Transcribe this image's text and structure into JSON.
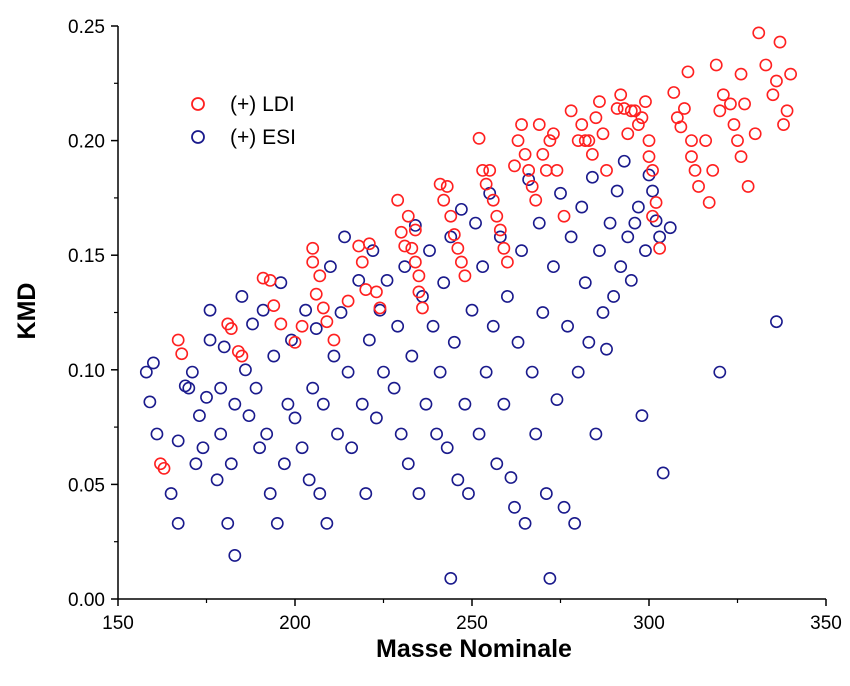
{
  "chart_data": {
    "type": "scatter",
    "xlabel": "Masse Nominale",
    "ylabel": "KMD",
    "xlim": [
      150,
      350
    ],
    "ylim": [
      0.0,
      0.25
    ],
    "x_ticks": [
      "150",
      "200",
      "250",
      "300",
      "350"
    ],
    "y_ticks": [
      "0.00",
      "0.05",
      "0.10",
      "0.15",
      "0.20",
      "0.25"
    ],
    "grid": false,
    "legend_position": "top-left",
    "series": [
      {
        "name": "(+) LDI",
        "color": "#ff2020",
        "marker": "open-circle",
        "points": [
          [
            162,
            0.059
          ],
          [
            163,
            0.057
          ],
          [
            167,
            0.113
          ],
          [
            168,
            0.107
          ],
          [
            181,
            0.12
          ],
          [
            182,
            0.118
          ],
          [
            184,
            0.108
          ],
          [
            185,
            0.106
          ],
          [
            191,
            0.14
          ],
          [
            193,
            0.139
          ],
          [
            194,
            0.128
          ],
          [
            196,
            0.12
          ],
          [
            200,
            0.112
          ],
          [
            202,
            0.119
          ],
          [
            205,
            0.153
          ],
          [
            205,
            0.147
          ],
          [
            206,
            0.133
          ],
          [
            207,
            0.141
          ],
          [
            208,
            0.127
          ],
          [
            209,
            0.121
          ],
          [
            211,
            0.113
          ],
          [
            215,
            0.13
          ],
          [
            218,
            0.154
          ],
          [
            219,
            0.147
          ],
          [
            220,
            0.135
          ],
          [
            221,
            0.155
          ],
          [
            223,
            0.134
          ],
          [
            224,
            0.127
          ],
          [
            229,
            0.174
          ],
          [
            230,
            0.16
          ],
          [
            231,
            0.154
          ],
          [
            232,
            0.167
          ],
          [
            233,
            0.153
          ],
          [
            234,
            0.161
          ],
          [
            234,
            0.147
          ],
          [
            235,
            0.141
          ],
          [
            235,
            0.134
          ],
          [
            236,
            0.127
          ],
          [
            241,
            0.181
          ],
          [
            242,
            0.174
          ],
          [
            243,
            0.18
          ],
          [
            244,
            0.167
          ],
          [
            245,
            0.159
          ],
          [
            246,
            0.153
          ],
          [
            247,
            0.147
          ],
          [
            248,
            0.141
          ],
          [
            252,
            0.201
          ],
          [
            253,
            0.187
          ],
          [
            254,
            0.181
          ],
          [
            255,
            0.187
          ],
          [
            256,
            0.174
          ],
          [
            257,
            0.167
          ],
          [
            258,
            0.161
          ],
          [
            259,
            0.153
          ],
          [
            260,
            0.147
          ],
          [
            262,
            0.189
          ],
          [
            263,
            0.2
          ],
          [
            264,
            0.207
          ],
          [
            265,
            0.194
          ],
          [
            266,
            0.187
          ],
          [
            267,
            0.18
          ],
          [
            268,
            0.174
          ],
          [
            269,
            0.207
          ],
          [
            270,
            0.194
          ],
          [
            271,
            0.187
          ],
          [
            272,
            0.2
          ],
          [
            273,
            0.203
          ],
          [
            274,
            0.187
          ],
          [
            276,
            0.167
          ],
          [
            278,
            0.213
          ],
          [
            280,
            0.2
          ],
          [
            281,
            0.207
          ],
          [
            282,
            0.2
          ],
          [
            283,
            0.2
          ],
          [
            284,
            0.194
          ],
          [
            285,
            0.21
          ],
          [
            286,
            0.217
          ],
          [
            287,
            0.203
          ],
          [
            288,
            0.187
          ],
          [
            291,
            0.214
          ],
          [
            292,
            0.22
          ],
          [
            293,
            0.214
          ],
          [
            294,
            0.203
          ],
          [
            295,
            0.213
          ],
          [
            296,
            0.213
          ],
          [
            297,
            0.207
          ],
          [
            298,
            0.21
          ],
          [
            299,
            0.217
          ],
          [
            300,
            0.2
          ],
          [
            300,
            0.193
          ],
          [
            301,
            0.187
          ],
          [
            301,
            0.167
          ],
          [
            302,
            0.173
          ],
          [
            303,
            0.153
          ],
          [
            307,
            0.221
          ],
          [
            308,
            0.21
          ],
          [
            309,
            0.206
          ],
          [
            310,
            0.214
          ],
          [
            311,
            0.23
          ],
          [
            312,
            0.2
          ],
          [
            312,
            0.193
          ],
          [
            313,
            0.187
          ],
          [
            314,
            0.18
          ],
          [
            316,
            0.2
          ],
          [
            317,
            0.173
          ],
          [
            318,
            0.187
          ],
          [
            319,
            0.233
          ],
          [
            320,
            0.213
          ],
          [
            321,
            0.22
          ],
          [
            323,
            0.216
          ],
          [
            324,
            0.207
          ],
          [
            325,
            0.2
          ],
          [
            326,
            0.193
          ],
          [
            326,
            0.229
          ],
          [
            327,
            0.216
          ],
          [
            328,
            0.18
          ],
          [
            330,
            0.203
          ],
          [
            331,
            0.247
          ],
          [
            333,
            0.233
          ],
          [
            335,
            0.22
          ],
          [
            336,
            0.226
          ],
          [
            337,
            0.243
          ],
          [
            338,
            0.207
          ],
          [
            339,
            0.213
          ],
          [
            340,
            0.229
          ]
        ]
      },
      {
        "name": "(+) ESI",
        "color": "#1a1a8c",
        "marker": "open-circle",
        "points": [
          [
            158,
            0.099
          ],
          [
            159,
            0.086
          ],
          [
            160,
            0.103
          ],
          [
            161,
            0.072
          ],
          [
            165,
            0.046
          ],
          [
            167,
            0.033
          ],
          [
            167,
            0.069
          ],
          [
            169,
            0.093
          ],
          [
            170,
            0.092
          ],
          [
            171,
            0.099
          ],
          [
            172,
            0.059
          ],
          [
            173,
            0.08
          ],
          [
            174,
            0.066
          ],
          [
            175,
            0.088
          ],
          [
            176,
            0.113
          ],
          [
            176,
            0.126
          ],
          [
            178,
            0.052
          ],
          [
            179,
            0.072
          ],
          [
            179,
            0.092
          ],
          [
            180,
            0.11
          ],
          [
            181,
            0.033
          ],
          [
            182,
            0.059
          ],
          [
            183,
            0.019
          ],
          [
            183,
            0.085
          ],
          [
            185,
            0.132
          ],
          [
            186,
            0.1
          ],
          [
            187,
            0.08
          ],
          [
            188,
            0.12
          ],
          [
            189,
            0.092
          ],
          [
            190,
            0.066
          ],
          [
            191,
            0.126
          ],
          [
            192,
            0.072
          ],
          [
            193,
            0.046
          ],
          [
            194,
            0.106
          ],
          [
            195,
            0.033
          ],
          [
            196,
            0.138
          ],
          [
            197,
            0.059
          ],
          [
            198,
            0.085
          ],
          [
            199,
            0.113
          ],
          [
            200,
            0.079
          ],
          [
            202,
            0.066
          ],
          [
            203,
            0.126
          ],
          [
            204,
            0.052
          ],
          [
            205,
            0.092
          ],
          [
            206,
            0.118
          ],
          [
            207,
            0.046
          ],
          [
            208,
            0.085
          ],
          [
            209,
            0.033
          ],
          [
            210,
            0.145
          ],
          [
            211,
            0.106
          ],
          [
            212,
            0.072
          ],
          [
            213,
            0.125
          ],
          [
            214,
            0.158
          ],
          [
            215,
            0.099
          ],
          [
            216,
            0.066
          ],
          [
            218,
            0.139
          ],
          [
            219,
            0.085
          ],
          [
            220,
            0.046
          ],
          [
            221,
            0.113
          ],
          [
            222,
            0.152
          ],
          [
            223,
            0.079
          ],
          [
            224,
            0.126
          ],
          [
            225,
            0.099
          ],
          [
            226,
            0.139
          ],
          [
            228,
            0.092
          ],
          [
            229,
            0.119
          ],
          [
            230,
            0.072
          ],
          [
            231,
            0.145
          ],
          [
            232,
            0.059
          ],
          [
            233,
            0.106
          ],
          [
            234,
            0.163
          ],
          [
            235,
            0.046
          ],
          [
            236,
            0.132
          ],
          [
            237,
            0.085
          ],
          [
            238,
            0.152
          ],
          [
            239,
            0.119
          ],
          [
            240,
            0.072
          ],
          [
            241,
            0.099
          ],
          [
            242,
            0.138
          ],
          [
            243,
            0.066
          ],
          [
            244,
            0.009
          ],
          [
            244,
            0.158
          ],
          [
            245,
            0.112
          ],
          [
            246,
            0.052
          ],
          [
            247,
            0.17
          ],
          [
            248,
            0.085
          ],
          [
            249,
            0.046
          ],
          [
            250,
            0.126
          ],
          [
            251,
            0.164
          ],
          [
            252,
            0.072
          ],
          [
            253,
            0.145
          ],
          [
            254,
            0.099
          ],
          [
            255,
            0.177
          ],
          [
            256,
            0.119
          ],
          [
            257,
            0.059
          ],
          [
            258,
            0.158
          ],
          [
            259,
            0.085
          ],
          [
            260,
            0.132
          ],
          [
            261,
            0.053
          ],
          [
            262,
            0.04
          ],
          [
            263,
            0.112
          ],
          [
            264,
            0.152
          ],
          [
            265,
            0.033
          ],
          [
            266,
            0.183
          ],
          [
            267,
            0.099
          ],
          [
            268,
            0.072
          ],
          [
            269,
            0.164
          ],
          [
            270,
            0.125
          ],
          [
            271,
            0.046
          ],
          [
            272,
            0.009
          ],
          [
            273,
            0.145
          ],
          [
            274,
            0.087
          ],
          [
            275,
            0.177
          ],
          [
            276,
            0.04
          ],
          [
            277,
            0.119
          ],
          [
            278,
            0.158
          ],
          [
            279,
            0.033
          ],
          [
            280,
            0.099
          ],
          [
            281,
            0.171
          ],
          [
            282,
            0.138
          ],
          [
            283,
            0.112
          ],
          [
            284,
            0.184
          ],
          [
            285,
            0.072
          ],
          [
            286,
            0.152
          ],
          [
            287,
            0.125
          ],
          [
            288,
            0.109
          ],
          [
            289,
            0.164
          ],
          [
            290,
            0.132
          ],
          [
            291,
            0.178
          ],
          [
            292,
            0.145
          ],
          [
            293,
            0.191
          ],
          [
            294,
            0.158
          ],
          [
            295,
            0.139
          ],
          [
            296,
            0.164
          ],
          [
            297,
            0.171
          ],
          [
            298,
            0.08
          ],
          [
            299,
            0.152
          ],
          [
            300,
            0.185
          ],
          [
            301,
            0.178
          ],
          [
            302,
            0.165
          ],
          [
            303,
            0.158
          ],
          [
            304,
            0.055
          ],
          [
            306,
            0.162
          ],
          [
            320,
            0.099
          ],
          [
            336,
            0.121
          ]
        ]
      }
    ]
  }
}
